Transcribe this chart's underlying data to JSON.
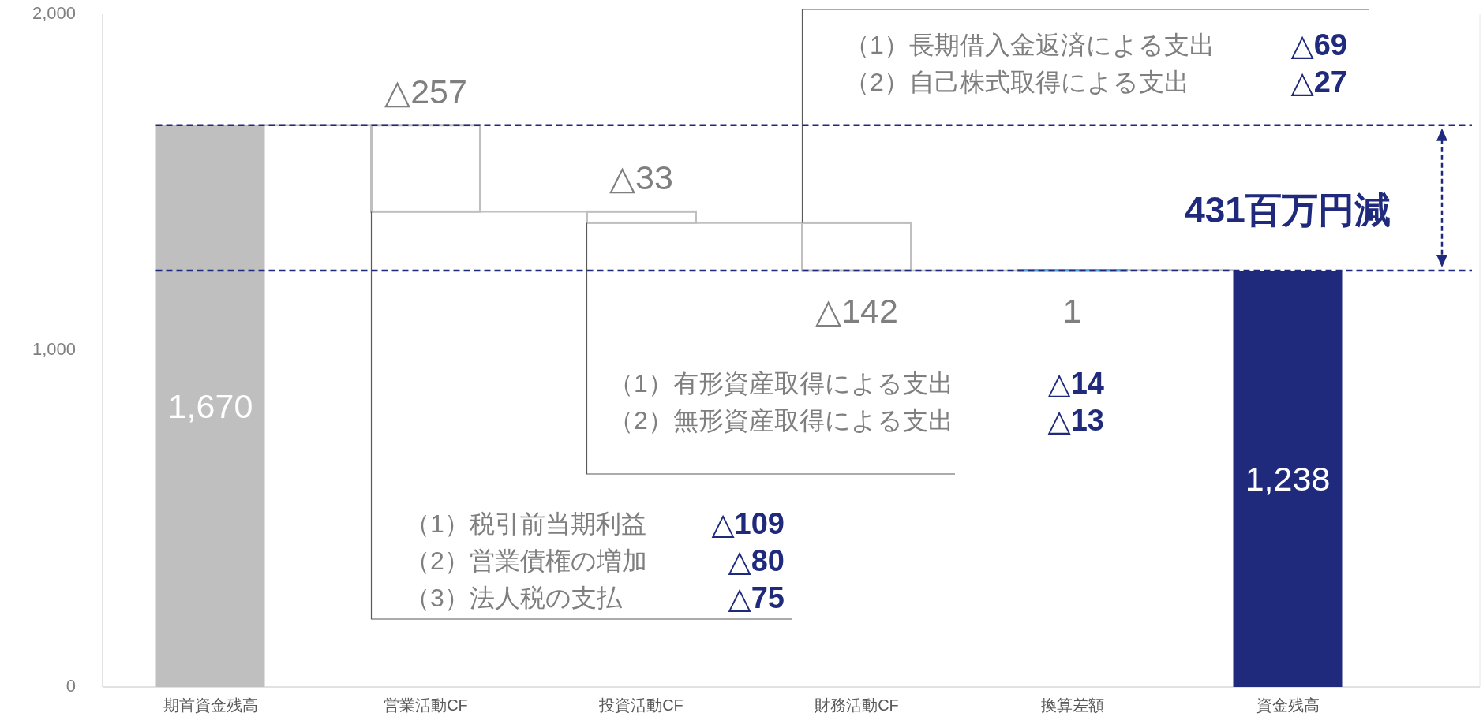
{
  "chart_data": {
    "type": "bar",
    "categories": [
      "期首資金残高",
      "営業活動CF",
      "投資活動CF",
      "財務活動CF",
      "換算差額",
      "資金残高"
    ],
    "values": [
      1670,
      -257,
      -33,
      -142,
      1,
      1238
    ],
    "base": [
      0,
      1670,
      1413,
      1380,
      1238,
      0
    ],
    "colors": [
      "#bfbfbf",
      "#bfbfbf",
      "#bfbfbf",
      "#bfbfbf",
      "#4ea6dc",
      "#1f2a7c"
    ],
    "value_labels": [
      "1,670",
      "△257",
      "△33",
      "△142",
      "1",
      "1,238"
    ],
    "ylim": [
      0,
      2000
    ],
    "yticks": [
      0,
      {
        "value": 1000,
        "label": "1,000"
      },
      {
        "value": 2000,
        "label": "2,000"
      }
    ],
    "ref_lines": [
      {
        "axis": "y",
        "value": 1670,
        "color": "#1f2a7c",
        "line_style": "dashed"
      },
      {
        "axis": "y",
        "value": 1238,
        "color": "#1f2a7c",
        "line_style": "dashed"
      }
    ],
    "annotations": [
      "（1）税引前当期利益",
      "△109",
      "（2）営業債権の増加",
      "△80",
      "（3）法人税の支払",
      "△75",
      "（1）有形資産取得による支出",
      "△14",
      "（2）無形資産取得による支出",
      "△13",
      "（1）長期借入金返済による支出",
      "△69",
      "（2）自己株式取得による支出",
      "△27",
      {
        "text": "431百万円減",
        "x": "資金残高",
        "y": 1238
      }
    ]
  }
}
